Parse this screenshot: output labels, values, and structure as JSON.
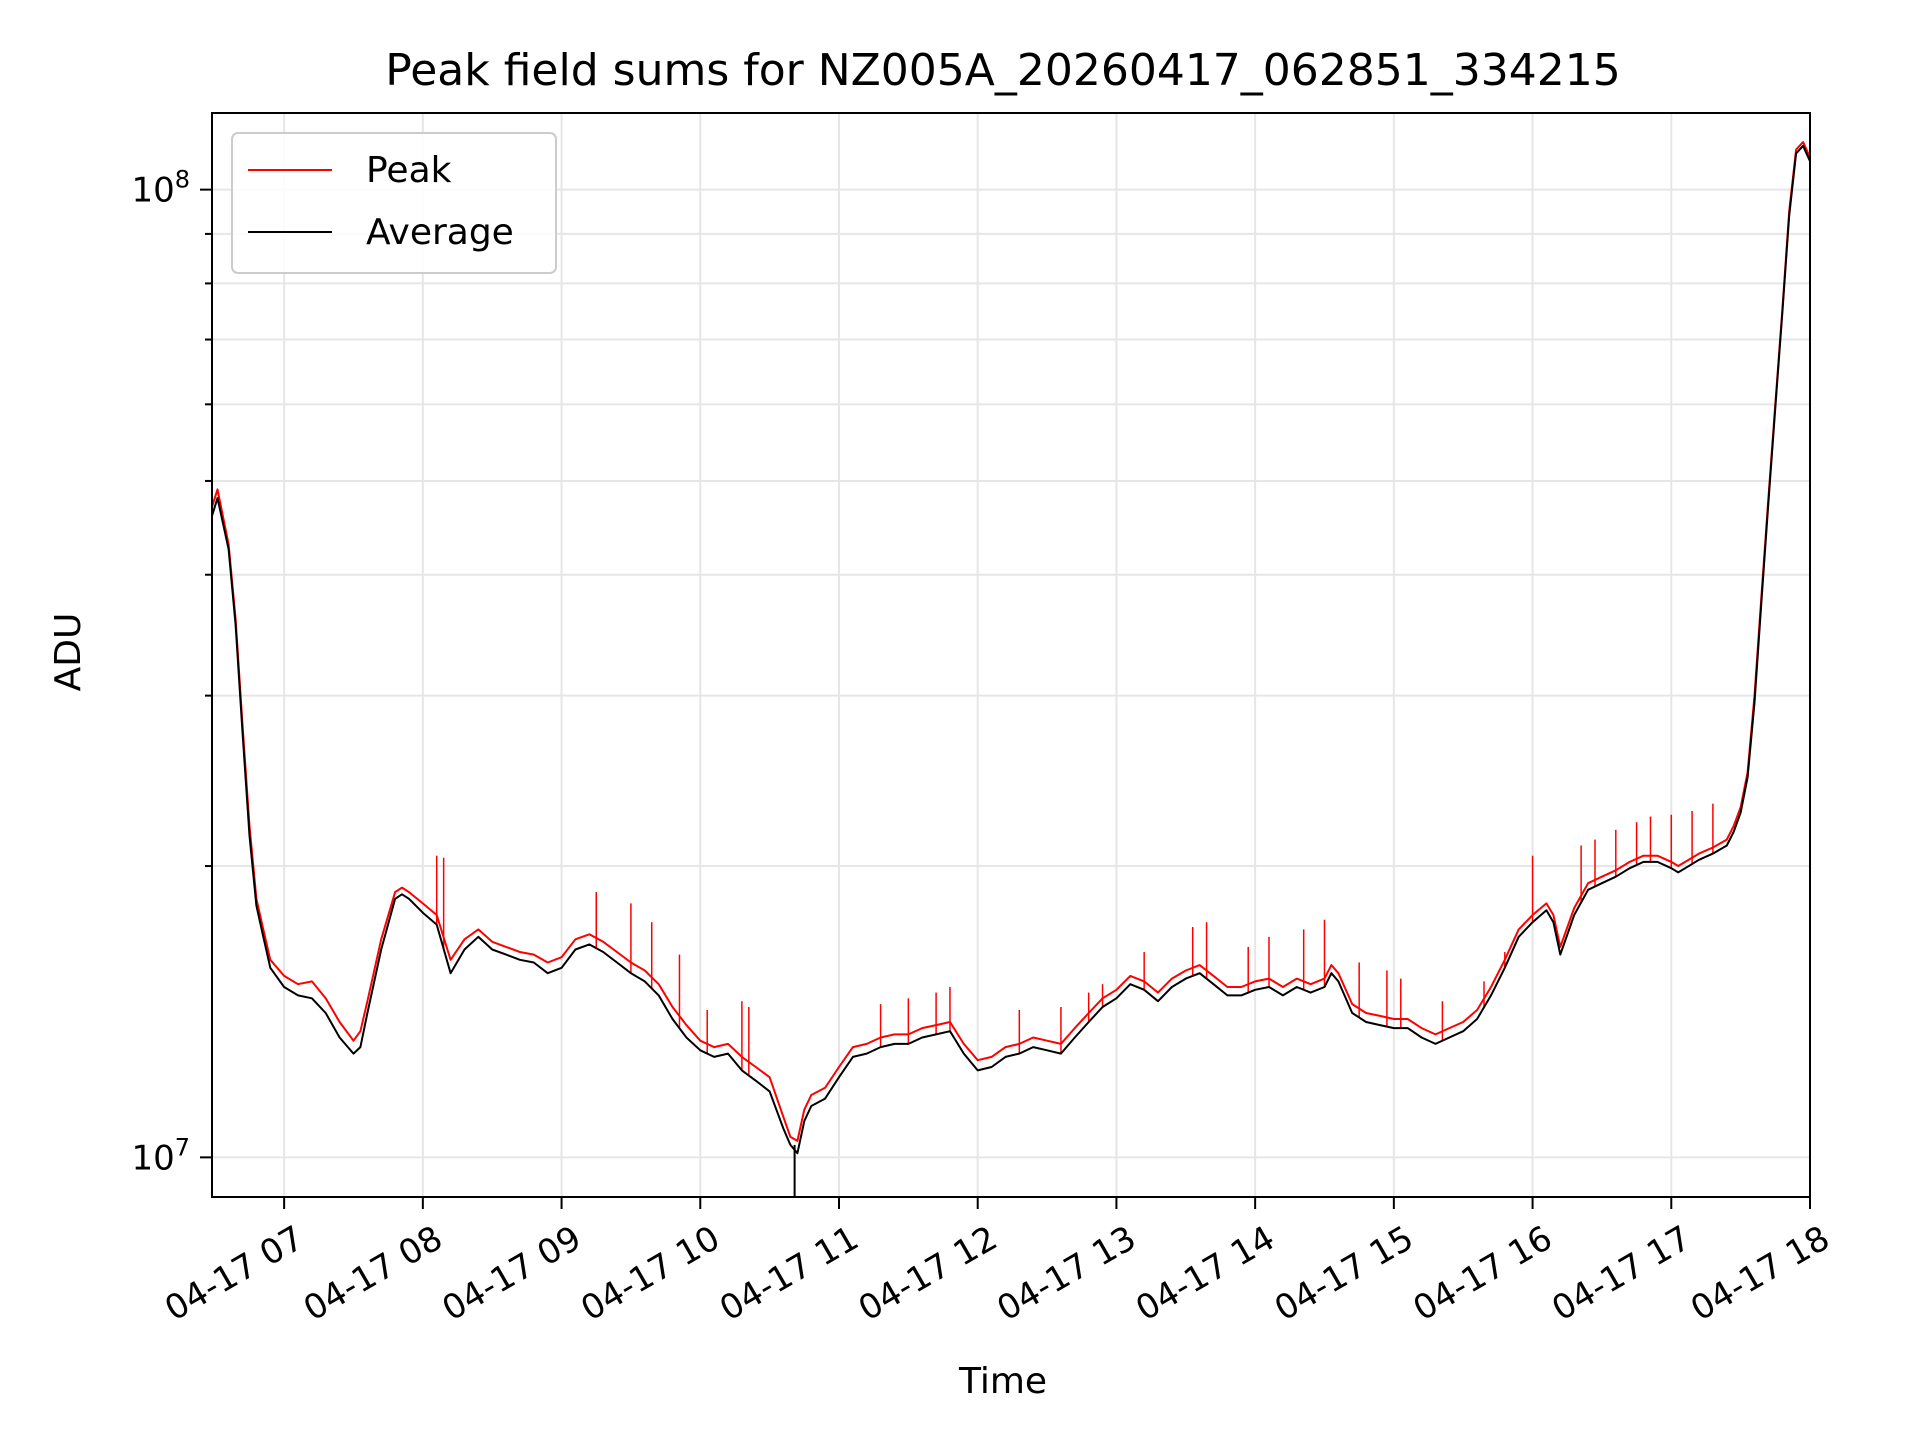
{
  "chart_data": {
    "type": "line",
    "title": "Peak field sums for NZ005A_20260417_062851_334215",
    "xlabel": "Time",
    "ylabel": "ADU",
    "y_scale": "log",
    "ylim": [
      9100000,
      120000000
    ],
    "xlim": [
      6.48,
      18.0
    ],
    "grid": true,
    "legend_position": "upper-left",
    "x_ticks": [
      {
        "value": 7,
        "label": "04-17 07"
      },
      {
        "value": 8,
        "label": "04-17 08"
      },
      {
        "value": 9,
        "label": "04-17 09"
      },
      {
        "value": 10,
        "label": "04-17 10"
      },
      {
        "value": 11,
        "label": "04-17 11"
      },
      {
        "value": 12,
        "label": "04-17 12"
      },
      {
        "value": 13,
        "label": "04-17 13"
      },
      {
        "value": 14,
        "label": "04-17 14"
      },
      {
        "value": 15,
        "label": "04-17 15"
      },
      {
        "value": 16,
        "label": "04-17 16"
      },
      {
        "value": 17,
        "label": "04-17 17"
      },
      {
        "value": 18,
        "label": "04-17 18"
      }
    ],
    "y_ticks": [
      {
        "value": 10000000,
        "base": "10",
        "exp": "7"
      },
      {
        "value": 100000000,
        "base": "10",
        "exp": "8"
      }
    ],
    "series": [
      {
        "name": "Peak",
        "color": "#ff0000",
        "x": [
          6.48,
          6.52,
          6.6,
          6.65,
          6.7,
          6.75,
          6.8,
          6.85,
          6.9,
          7.0,
          7.1,
          7.2,
          7.3,
          7.4,
          7.5,
          7.55,
          7.6,
          7.7,
          7.8,
          7.85,
          7.9,
          8.0,
          8.1,
          8.2,
          8.3,
          8.4,
          8.5,
          8.6,
          8.7,
          8.8,
          8.9,
          9.0,
          9.1,
          9.2,
          9.3,
          9.4,
          9.5,
          9.6,
          9.7,
          9.8,
          9.9,
          10.0,
          10.1,
          10.2,
          10.3,
          10.4,
          10.5,
          10.6,
          10.65,
          10.7,
          10.75,
          10.8,
          10.9,
          11.0,
          11.1,
          11.2,
          11.3,
          11.4,
          11.5,
          11.6,
          11.7,
          11.8,
          11.9,
          12.0,
          12.1,
          12.2,
          12.3,
          12.4,
          12.5,
          12.6,
          12.7,
          12.8,
          12.9,
          13.0,
          13.1,
          13.2,
          13.3,
          13.4,
          13.5,
          13.6,
          13.7,
          13.8,
          13.9,
          14.0,
          14.1,
          14.2,
          14.3,
          14.4,
          14.5,
          14.55,
          14.6,
          14.7,
          14.8,
          14.9,
          15.0,
          15.1,
          15.2,
          15.3,
          15.4,
          15.5,
          15.6,
          15.7,
          15.8,
          15.9,
          16.0,
          16.1,
          16.15,
          16.2,
          16.3,
          16.4,
          16.5,
          16.6,
          16.7,
          16.8,
          16.9,
          17.0,
          17.05,
          17.1,
          17.2,
          17.3,
          17.4,
          17.45,
          17.5,
          17.55,
          17.6,
          17.65,
          17.7,
          17.75,
          17.8,
          17.85,
          17.9,
          17.95,
          18.0
        ],
        "values": [
          47000000,
          49000000,
          43000000,
          36000000,
          28000000,
          22000000,
          18500000,
          17200000,
          16000000,
          15400000,
          15100000,
          15200000,
          14600000,
          13800000,
          13200000,
          13500000,
          14500000,
          16800000,
          18800000,
          19000000,
          18800000,
          18300000,
          17800000,
          16000000,
          16800000,
          17200000,
          16700000,
          16500000,
          16300000,
          16200000,
          15900000,
          16100000,
          16800000,
          17000000,
          16700000,
          16300000,
          15900000,
          15600000,
          15100000,
          14300000,
          13700000,
          13200000,
          13000000,
          13100000,
          12700000,
          12400000,
          12100000,
          11000000,
          10500000,
          10400000,
          11200000,
          11600000,
          11800000,
          12400000,
          13000000,
          13100000,
          13300000,
          13400000,
          13400000,
          13600000,
          13700000,
          13800000,
          13100000,
          12600000,
          12700000,
          13000000,
          13100000,
          13300000,
          13200000,
          13100000,
          13600000,
          14100000,
          14600000,
          14900000,
          15400000,
          15200000,
          14800000,
          15300000,
          15600000,
          15800000,
          15400000,
          15000000,
          15000000,
          15200000,
          15300000,
          15000000,
          15300000,
          15100000,
          15300000,
          15800000,
          15500000,
          14400000,
          14100000,
          14000000,
          13900000,
          13900000,
          13600000,
          13400000,
          13600000,
          13800000,
          14200000,
          15000000,
          16000000,
          17200000,
          17800000,
          18300000,
          17800000,
          16500000,
          18100000,
          19200000,
          19500000,
          19800000,
          20200000,
          20500000,
          20500000,
          20200000,
          20000000,
          20200000,
          20600000,
          20900000,
          21300000,
          22000000,
          23000000,
          25000000,
          30000000,
          38000000,
          48000000,
          60000000,
          75000000,
          95000000,
          110000000,
          112000000,
          108000000
        ]
      },
      {
        "name": "Average",
        "color": "#000000",
        "x": [
          6.48,
          6.52,
          6.6,
          6.65,
          6.7,
          6.75,
          6.8,
          6.85,
          6.9,
          7.0,
          7.1,
          7.2,
          7.3,
          7.4,
          7.5,
          7.55,
          7.6,
          7.7,
          7.8,
          7.85,
          7.9,
          8.0,
          8.1,
          8.2,
          8.3,
          8.4,
          8.5,
          8.6,
          8.7,
          8.8,
          8.9,
          9.0,
          9.1,
          9.2,
          9.3,
          9.4,
          9.5,
          9.6,
          9.7,
          9.8,
          9.9,
          10.0,
          10.1,
          10.2,
          10.3,
          10.4,
          10.5,
          10.6,
          10.65,
          10.7,
          10.75,
          10.8,
          10.9,
          11.0,
          11.1,
          11.2,
          11.3,
          11.4,
          11.5,
          11.6,
          11.7,
          11.8,
          11.9,
          12.0,
          12.1,
          12.2,
          12.3,
          12.4,
          12.5,
          12.6,
          12.7,
          12.8,
          12.9,
          13.0,
          13.1,
          13.2,
          13.3,
          13.4,
          13.5,
          13.6,
          13.7,
          13.8,
          13.9,
          14.0,
          14.1,
          14.2,
          14.3,
          14.4,
          14.5,
          14.55,
          14.6,
          14.7,
          14.8,
          14.9,
          15.0,
          15.1,
          15.2,
          15.3,
          15.4,
          15.5,
          15.6,
          15.7,
          15.8,
          15.9,
          16.0,
          16.1,
          16.15,
          16.2,
          16.3,
          16.4,
          16.5,
          16.6,
          16.7,
          16.8,
          16.9,
          17.0,
          17.05,
          17.1,
          17.2,
          17.3,
          17.4,
          17.45,
          17.5,
          17.55,
          17.6,
          17.65,
          17.7,
          17.75,
          17.8,
          17.85,
          17.9,
          17.95,
          18.0
        ],
        "values": [
          46000000,
          48000000,
          42500000,
          35500000,
          27500000,
          21500000,
          18200000,
          16900000,
          15700000,
          15000000,
          14700000,
          14600000,
          14100000,
          13300000,
          12800000,
          13000000,
          14100000,
          16400000,
          18500000,
          18700000,
          18500000,
          17900000,
          17400000,
          15500000,
          16400000,
          16900000,
          16400000,
          16200000,
          16000000,
          15900000,
          15500000,
          15700000,
          16400000,
          16600000,
          16300000,
          15900000,
          15500000,
          15200000,
          14700000,
          13900000,
          13300000,
          12900000,
          12700000,
          12800000,
          12300000,
          12000000,
          11700000,
          10700000,
          10300000,
          10100000,
          10900000,
          11300000,
          11500000,
          12100000,
          12700000,
          12800000,
          13000000,
          13100000,
          13100000,
          13300000,
          13400000,
          13500000,
          12800000,
          12300000,
          12400000,
          12700000,
          12800000,
          13000000,
          12900000,
          12800000,
          13300000,
          13800000,
          14300000,
          14600000,
          15100000,
          14900000,
          14500000,
          15000000,
          15300000,
          15500000,
          15100000,
          14700000,
          14700000,
          14900000,
          15000000,
          14700000,
          15000000,
          14800000,
          15000000,
          15500000,
          15200000,
          14100000,
          13800000,
          13700000,
          13600000,
          13600000,
          13300000,
          13100000,
          13300000,
          13500000,
          13900000,
          14700000,
          15700000,
          16900000,
          17500000,
          18000000,
          17500000,
          16200000,
          17800000,
          18900000,
          19200000,
          19500000,
          19900000,
          20200000,
          20200000,
          19900000,
          19700000,
          19900000,
          20300000,
          20600000,
          21000000,
          21700000,
          22700000,
          24700000,
          29500000,
          37500000,
          47500000,
          59500000,
          74500000,
          94000000,
          109000000,
          111000000,
          107000000
        ]
      }
    ],
    "peak_spikes": [
      {
        "x": 8.1,
        "peak": 20500000
      },
      {
        "x": 8.15,
        "peak": 20400000
      },
      {
        "x": 9.25,
        "peak": 18800000
      },
      {
        "x": 9.5,
        "peak": 18300000
      },
      {
        "x": 9.65,
        "peak": 17500000
      },
      {
        "x": 9.85,
        "peak": 16200000
      },
      {
        "x": 10.05,
        "peak": 14200000
      },
      {
        "x": 10.3,
        "peak": 14500000
      },
      {
        "x": 10.35,
        "peak": 14300000
      },
      {
        "x": 11.3,
        "peak": 14400000
      },
      {
        "x": 11.5,
        "peak": 14600000
      },
      {
        "x": 11.7,
        "peak": 14800000
      },
      {
        "x": 11.8,
        "peak": 15000000
      },
      {
        "x": 12.3,
        "peak": 14200000
      },
      {
        "x": 12.6,
        "peak": 14300000
      },
      {
        "x": 12.8,
        "peak": 14800000
      },
      {
        "x": 12.9,
        "peak": 15100000
      },
      {
        "x": 13.2,
        "peak": 16300000
      },
      {
        "x": 13.55,
        "peak": 17300000
      },
      {
        "x": 13.65,
        "peak": 17500000
      },
      {
        "x": 13.95,
        "peak": 16500000
      },
      {
        "x": 14.1,
        "peak": 16900000
      },
      {
        "x": 14.35,
        "peak": 17200000
      },
      {
        "x": 14.5,
        "peak": 17600000
      },
      {
        "x": 14.75,
        "peak": 15900000
      },
      {
        "x": 14.95,
        "peak": 15600000
      },
      {
        "x": 15.05,
        "peak": 15300000
      },
      {
        "x": 15.35,
        "peak": 14500000
      },
      {
        "x": 15.65,
        "peak": 15200000
      },
      {
        "x": 15.8,
        "peak": 16300000
      },
      {
        "x": 16.0,
        "peak": 20500000
      },
      {
        "x": 16.35,
        "peak": 21000000
      },
      {
        "x": 16.45,
        "peak": 21300000
      },
      {
        "x": 16.6,
        "peak": 21800000
      },
      {
        "x": 16.75,
        "peak": 22200000
      },
      {
        "x": 16.85,
        "peak": 22500000
      },
      {
        "x": 17.0,
        "peak": 22600000
      },
      {
        "x": 17.15,
        "peak": 22800000
      },
      {
        "x": 17.3,
        "peak": 23200000
      }
    ]
  }
}
